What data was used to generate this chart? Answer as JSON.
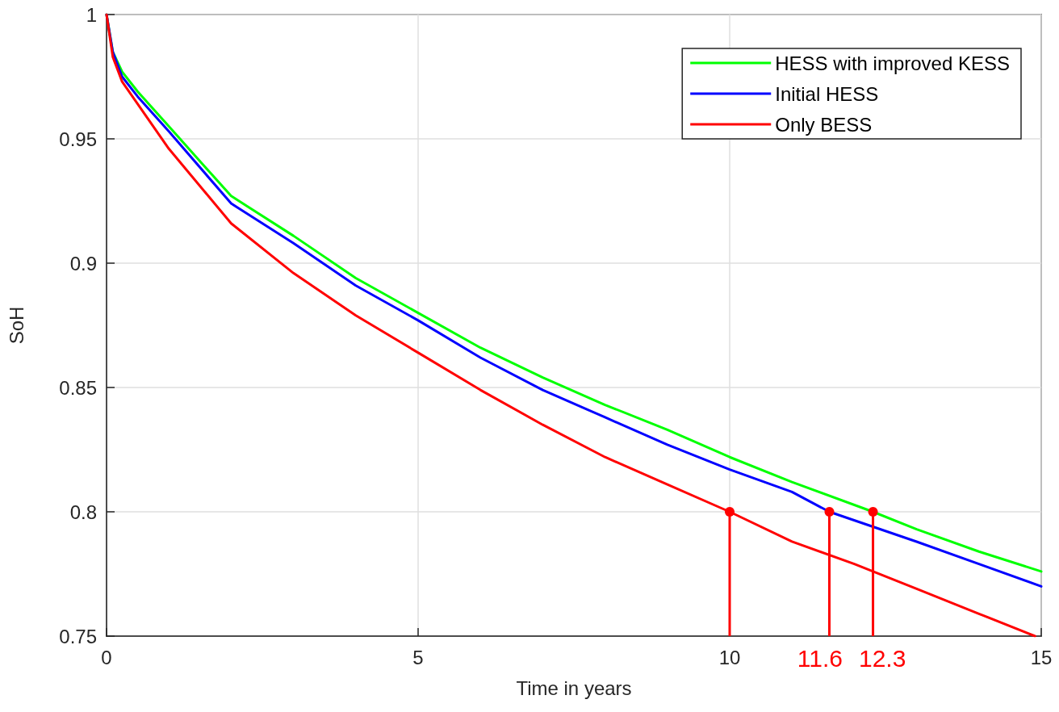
{
  "chart_data": {
    "type": "line",
    "xlabel": "Time in years",
    "ylabel": "SoH",
    "xlim": [
      0,
      15
    ],
    "xticks": [
      0,
      5,
      10,
      15
    ],
    "ylim": [
      0.75,
      1
    ],
    "yticks": [
      0.75,
      0.8,
      0.85,
      0.9,
      0.95,
      1
    ],
    "grid": true,
    "legend": "top right",
    "marker": "none",
    "line_style": "solid",
    "series": [
      {
        "name": "HESS with improved KESS",
        "color": "#00ff00",
        "x": [
          0,
          0.1,
          0.25,
          0.5,
          1,
          2,
          3,
          4,
          5,
          6,
          7,
          8,
          9,
          10,
          11,
          12.3,
          13,
          14,
          15
        ],
        "values": [
          1,
          0.985,
          0.977,
          0.969,
          0.955,
          0.927,
          0.911,
          0.894,
          0.88,
          0.866,
          0.854,
          0.843,
          0.833,
          0.822,
          0.812,
          0.8,
          0.793,
          0.784,
          0.776
        ]
      },
      {
        "name": "Initial HESS",
        "color": "#0000ff",
        "x": [
          0,
          0.1,
          0.25,
          0.5,
          1,
          2,
          3,
          4,
          5,
          6,
          7,
          8,
          9,
          10,
          11,
          11.6,
          12.3,
          13,
          14,
          15
        ],
        "values": [
          1,
          0.985,
          0.975,
          0.967,
          0.953,
          0.924,
          0.908,
          0.891,
          0.877,
          0.862,
          0.849,
          0.838,
          0.827,
          0.817,
          0.808,
          0.8,
          0.794,
          0.788,
          0.779,
          0.77
        ]
      },
      {
        "name": "Only BESS",
        "color": "#ff0000",
        "x": [
          0,
          0.1,
          0.25,
          0.5,
          1,
          2,
          3,
          4,
          5,
          6,
          7,
          8,
          9,
          10,
          11,
          12,
          13,
          14,
          14.9
        ],
        "values": [
          1,
          0.983,
          0.973,
          0.964,
          0.946,
          0.916,
          0.896,
          0.879,
          0.864,
          0.849,
          0.835,
          0.822,
          0.811,
          0.8,
          0.788,
          0.779,
          0.769,
          0.759,
          0.75
        ]
      },
      {
        "type": "lollipop",
        "color": "#ff0000",
        "marker": "circle",
        "x": [
          10,
          11.6,
          12.3
        ],
        "values": [
          0.8,
          0.8,
          0.8
        ]
      }
    ],
    "annotations": [
      "11.6",
      "12.3"
    ]
  }
}
